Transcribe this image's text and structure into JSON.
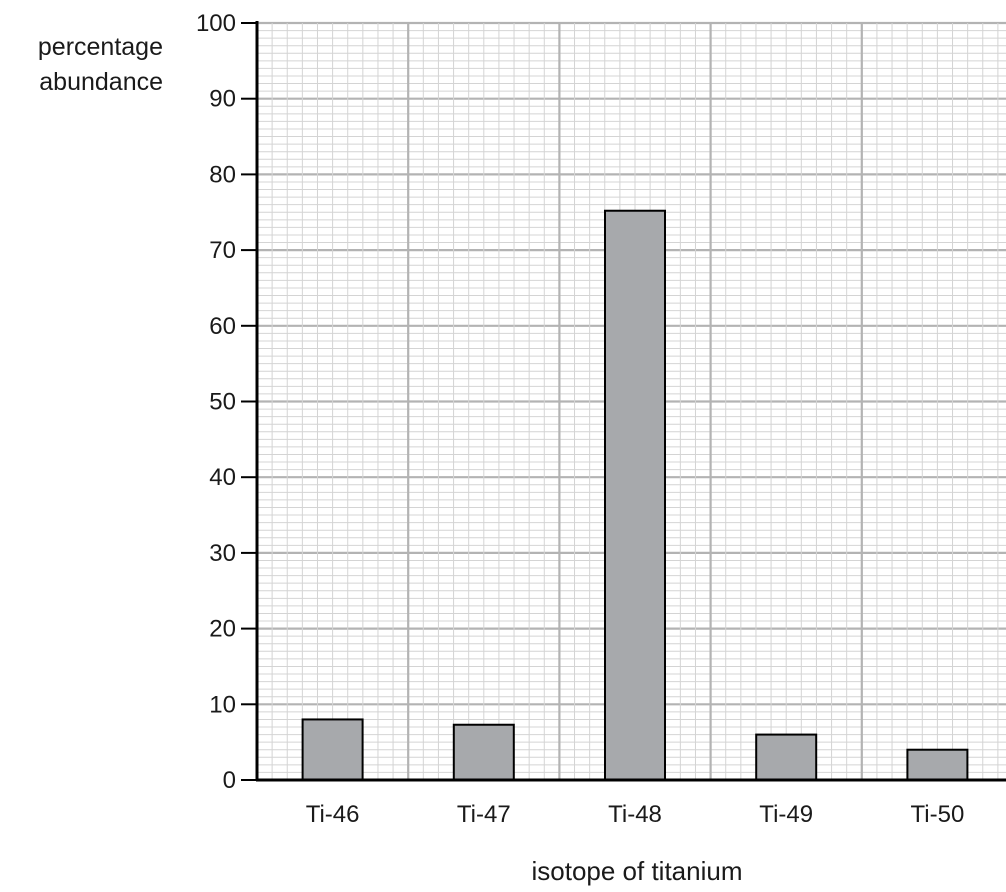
{
  "chart_data": {
    "type": "bar",
    "title": "",
    "ylabel_lines": [
      "percentage",
      "abundance"
    ],
    "xlabel": "isotope of titanium",
    "categories": [
      "Ti-46",
      "Ti-47",
      "Ti-48",
      "Ti-49",
      "Ti-50"
    ],
    "values": [
      8,
      7.3,
      75.2,
      6,
      4
    ],
    "ylim": [
      0,
      100
    ],
    "yticks": [
      0,
      10,
      20,
      30,
      40,
      50,
      60,
      70,
      80,
      90,
      100
    ],
    "grid": true,
    "colors": {
      "bar": "#a7a9ac",
      "bar_edge": "#000000",
      "grid_major": "#b3b3b3",
      "grid_minor": "#d4d4d4",
      "axis": "#000000"
    }
  }
}
